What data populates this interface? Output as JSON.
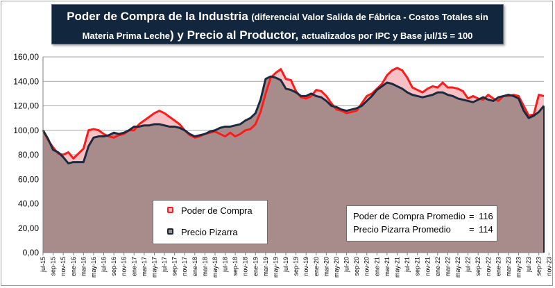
{
  "title": {
    "line1_bold": "Poder de Compra de la Industria",
    "line1_small": "(diferencial Valor Salida de Fábrica - Costos Totales sin",
    "line2_small_a": "Materia Prima Leche",
    "line2_bold": ") y Precio al Productor,",
    "line2_small_b": "actualizados por IPC y Base jul/15 = 100"
  },
  "legend": {
    "poder_label": "Poder de Compra",
    "precio_label": "Precio Pizarra"
  },
  "stats": {
    "poder_label": "Poder de Compra Promedio",
    "poder_eq": "=",
    "poder_value": "116",
    "precio_label": "Precio Pizarra Promedio",
    "precio_eq": "=",
    "precio_value": "114"
  },
  "colors": {
    "poder_line": "#ff1a1a",
    "poder_fill": "#f6c0c4",
    "precio_line": "#1b2a3e",
    "precio_fill": "#a88c8c",
    "title_bg": "#12263e"
  },
  "chart_data": {
    "type": "area",
    "title": "Poder de Compra de la Industria (diferencial Valor Salida de Fábrica - Costos Totales sin Materia Prima Leche) y Precio al Productor, actualizados por IPC y Base jul/15 = 100",
    "ylim": [
      0,
      160
    ],
    "yticks": [
      "0,00",
      "20,00",
      "40,00",
      "60,00",
      "80,00",
      "100,00",
      "120,00",
      "140,00",
      "160,00"
    ],
    "x_labels": [
      "jul-15",
      "sep-15",
      "nov-15",
      "ene-16",
      "mar-16",
      "may-16",
      "jul-16",
      "sep-16",
      "nov-16",
      "ene-17",
      "mar-17",
      "may-17",
      "jul-17",
      "sep-17",
      "nov-17",
      "ene-18",
      "mar-18",
      "may-18",
      "jul-18",
      "sep-18",
      "nov-18",
      "ene-19",
      "mar-19",
      "may-19",
      "jul-19",
      "sep-19",
      "nov-19",
      "ene-20",
      "mar-20",
      "may-20",
      "jul-20",
      "sep-20",
      "nov-20",
      "ene-21",
      "mar-21",
      "may-21",
      "jul-21",
      "sep-21",
      "nov-21",
      "ene-22",
      "mar-22",
      "may-22",
      "jul-22",
      "sep-22",
      "nov-22",
      "ene-23",
      "mar-23",
      "may-23",
      "jul-23",
      "sep-23",
      "nov-23"
    ],
    "series": [
      {
        "name": "Poder de Compra",
        "values": [
          100,
          92,
          86,
          81,
          80,
          82,
          77,
          81,
          85,
          100,
          101,
          100,
          97,
          95,
          94,
          96,
          97,
          100,
          100,
          105,
          108,
          111,
          114,
          116,
          114,
          111,
          108,
          105,
          100,
          96,
          94,
          95,
          97,
          98,
          99,
          97,
          95,
          98,
          95,
          97,
          100,
          101,
          105,
          115,
          130,
          143,
          147,
          150,
          142,
          141,
          132,
          127,
          126,
          128,
          133,
          132,
          128,
          122,
          117,
          116,
          114,
          115,
          116,
          122,
          128,
          130,
          134,
          138,
          145,
          149,
          151,
          149,
          143,
          135,
          133,
          131,
          134,
          136,
          135,
          139,
          135,
          135,
          134,
          132,
          126,
          128,
          126,
          125,
          129,
          126,
          124,
          128,
          128,
          129,
          128,
          120,
          112,
          113,
          129,
          128
        ]
      },
      {
        "name": "Precio Pizarra",
        "values": [
          100,
          93,
          84,
          82,
          78,
          73,
          74,
          74,
          74,
          87,
          94,
          95,
          95,
          96,
          98,
          97,
          98,
          100,
          103,
          103,
          104,
          104,
          105,
          105,
          104,
          103,
          103,
          102,
          100,
          97,
          95,
          96,
          97,
          99,
          100,
          102,
          103,
          103,
          104,
          105,
          108,
          110,
          114,
          125,
          142,
          144,
          143,
          141,
          134,
          133,
          131,
          128,
          128,
          130,
          128,
          127,
          124,
          120,
          119,
          117,
          116,
          117,
          118,
          120,
          124,
          128,
          133,
          136,
          139,
          138,
          136,
          134,
          131,
          129,
          128,
          127,
          128,
          129,
          131,
          131,
          129,
          128,
          126,
          125,
          124,
          123,
          125,
          127,
          125,
          124,
          127,
          128,
          129,
          128,
          126,
          116,
          110,
          112,
          115,
          120
        ]
      }
    ]
  }
}
